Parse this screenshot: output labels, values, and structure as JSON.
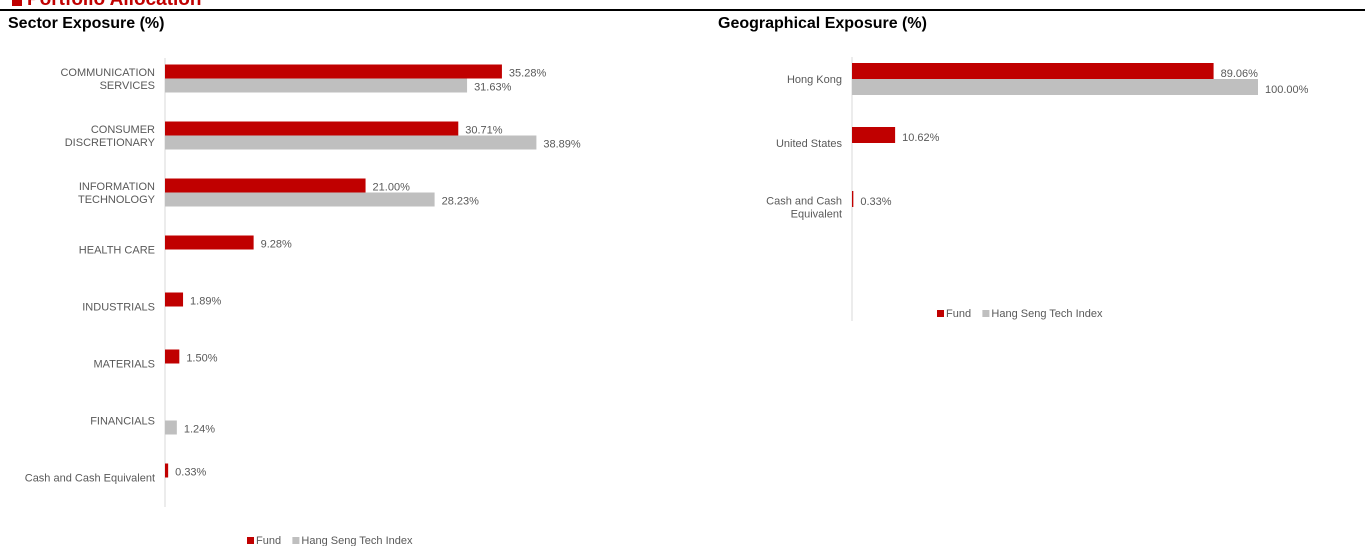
{
  "section": {
    "title": "Portfolio Allocation"
  },
  "colors": {
    "accent": "#c00000",
    "fund": "#c00000",
    "index": "#bfbfbf",
    "axis": "#d9d9d9",
    "text": "#595959"
  },
  "chart_data": [
    {
      "type": "bar",
      "orientation": "horizontal",
      "title": "Sector Exposure (%)",
      "categories": [
        [
          "COMMUNICATION",
          "SERVICES"
        ],
        [
          "CONSUMER",
          "DISCRETIONARY"
        ],
        [
          "INFORMATION",
          "TECHNOLOGY"
        ],
        [
          "HEALTH CARE"
        ],
        [
          "INDUSTRIALS"
        ],
        [
          "MATERIALS"
        ],
        [
          "FINANCIALS"
        ],
        [
          "Cash and Cash Equivalent"
        ]
      ],
      "series": [
        {
          "name": "Fund",
          "values": [
            35.28,
            30.71,
            21.0,
            9.28,
            1.89,
            1.5,
            null,
            0.33
          ],
          "labels": [
            "35.28%",
            "30.71%",
            "21.00%",
            "9.28%",
            "1.89%",
            "1.50%",
            "",
            "0.33%"
          ]
        },
        {
          "name": "Hang Seng Tech Index",
          "values": [
            31.63,
            38.89,
            28.23,
            null,
            null,
            null,
            1.24,
            null
          ],
          "labels": [
            "31.63%",
            "38.89%",
            "28.23%",
            "",
            "",
            "",
            "1.24%",
            ""
          ]
        }
      ],
      "legend_position": "bottom",
      "grid": false
    },
    {
      "type": "bar",
      "orientation": "horizontal",
      "title": "Geographical Exposure (%)",
      "categories": [
        [
          "Hong Kong"
        ],
        [
          "United States"
        ],
        [
          "Cash and Cash",
          "Equivalent"
        ]
      ],
      "series": [
        {
          "name": "Fund",
          "values": [
            89.06,
            10.62,
            0.33
          ],
          "labels": [
            "89.06%",
            "10.62%",
            "0.33%"
          ]
        },
        {
          "name": "Hang Seng Tech Index",
          "values": [
            100.0,
            null,
            null
          ],
          "labels": [
            "100.00%",
            "",
            ""
          ]
        }
      ],
      "legend_position": "bottom",
      "grid": false
    }
  ]
}
